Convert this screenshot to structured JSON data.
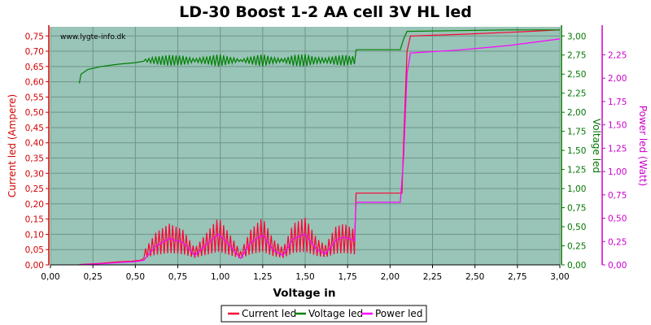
{
  "chart_data": {
    "type": "line",
    "title": "LD-30 Boost 1-2 AA cell 3V HL led",
    "watermark": "www.lygte-info.dk",
    "xlabel": "Voltage in",
    "xlim": [
      0,
      3.0
    ],
    "xticks": [
      "0,00",
      "0,25",
      "0,50",
      "0,75",
      "1,00",
      "1,25",
      "1,50",
      "1,75",
      "2,00",
      "2,25",
      "2,50",
      "2,75",
      "3,00"
    ],
    "axes": {
      "left": {
        "label": "Current led (Ampere)",
        "color": "#d40000",
        "lim": [
          0,
          0.78
        ],
        "ticks": [
          "0,00",
          "0,05",
          "0,10",
          "0,15",
          "0,20",
          "0,25",
          "0,30",
          "0,35",
          "0,40",
          "0,45",
          "0,50",
          "0,55",
          "0,60",
          "0,65",
          "0,70",
          "0,75"
        ]
      },
      "right1": {
        "label": "Voltage led",
        "color": "#007700",
        "lim": [
          0,
          3.12
        ],
        "ticks": [
          "0,00",
          "0,25",
          "0,50",
          "0,75",
          "1,00",
          "1,25",
          "1,50",
          "1,75",
          "2,00",
          "2,25",
          "2,50",
          "2,75",
          "3,00"
        ]
      },
      "right2": {
        "label": "Power led (Watt)",
        "color": "#cc00cc",
        "lim": [
          0,
          2.55
        ],
        "ticks": [
          "0,00",
          "0,25",
          "0,50",
          "0,75",
          "1,00",
          "1,25",
          "1,50",
          "1,75",
          "2,00",
          "2,25"
        ]
      }
    },
    "plot_background": "#99c4b8",
    "grid": true,
    "legend_position": "bottom-center",
    "series": [
      {
        "name": "Current led",
        "axis": "left",
        "color": "#ff0033",
        "oscillation": {
          "x_from": 0.55,
          "x_to": 1.79,
          "period": 0.02,
          "low": 0.015,
          "envelope_x": [
            0.55,
            0.62,
            0.7,
            0.78,
            0.85,
            0.92,
            0.99,
            1.05,
            1.12,
            1.18,
            1.25,
            1.31,
            1.37,
            1.43,
            1.5,
            1.57,
            1.62,
            1.68,
            1.73,
            1.79
          ],
          "envelope_y": [
            0.03,
            0.09,
            0.12,
            0.1,
            0.04,
            0.09,
            0.14,
            0.09,
            0.03,
            0.1,
            0.14,
            0.07,
            0.04,
            0.12,
            0.14,
            0.07,
            0.05,
            0.11,
            0.12,
            0.1
          ]
        },
        "x": [
          0.17,
          0.3,
          0.4,
          0.48,
          0.53,
          0.55,
          1.79,
          1.8,
          1.81,
          2.07,
          2.08,
          2.1,
          2.12,
          2.4,
          2.7,
          3.0
        ],
        "y": [
          0.001,
          0.005,
          0.01,
          0.012,
          0.015,
          0.02,
          0.1,
          0.235,
          0.235,
          0.235,
          0.4,
          0.7,
          0.75,
          0.755,
          0.762,
          0.77
        ]
      },
      {
        "name": "Voltage led",
        "axis": "right1",
        "color": "#008000",
        "oscillation": {
          "x_from": 0.55,
          "x_to": 1.79,
          "period": 0.02,
          "mid": 2.68,
          "envelope_x": [
            0.55,
            0.62,
            0.7,
            0.78,
            0.85,
            0.92,
            0.99,
            1.05,
            1.12,
            1.18,
            1.25,
            1.31,
            1.37,
            1.43,
            1.5,
            1.57,
            1.62,
            1.68,
            1.73,
            1.79
          ],
          "envelope_y": [
            0.01,
            0.05,
            0.07,
            0.06,
            0.02,
            0.05,
            0.08,
            0.05,
            0.01,
            0.05,
            0.08,
            0.04,
            0.02,
            0.07,
            0.08,
            0.04,
            0.03,
            0.06,
            0.07,
            0.05
          ]
        },
        "x": [
          0.17,
          0.18,
          0.22,
          0.3,
          0.4,
          0.5,
          0.55,
          1.79,
          1.8,
          2.06,
          2.08,
          2.1,
          2.4,
          2.7,
          3.0
        ],
        "y": [
          2.38,
          2.5,
          2.56,
          2.6,
          2.63,
          2.65,
          2.66,
          2.75,
          2.82,
          2.82,
          2.96,
          3.06,
          3.07,
          3.08,
          3.08
        ]
      },
      {
        "name": "Power led",
        "axis": "right2",
        "color": "#ff00ff",
        "oscillation": null,
        "x": [
          0.17,
          0.3,
          0.4,
          0.5,
          0.55,
          0.62,
          0.7,
          0.78,
          0.85,
          0.92,
          0.99,
          1.05,
          1.12,
          1.18,
          1.25,
          1.31,
          1.37,
          1.43,
          1.5,
          1.57,
          1.62,
          1.68,
          1.73,
          1.79,
          1.8,
          2.06,
          2.08,
          2.1,
          2.12,
          2.4,
          2.7,
          3.0
        ],
        "y": [
          0.002,
          0.012,
          0.025,
          0.035,
          0.05,
          0.2,
          0.28,
          0.24,
          0.1,
          0.22,
          0.33,
          0.22,
          0.07,
          0.24,
          0.32,
          0.16,
          0.1,
          0.28,
          0.33,
          0.16,
          0.12,
          0.26,
          0.3,
          0.26,
          0.67,
          0.67,
          1.15,
          2.05,
          2.27,
          2.3,
          2.35,
          2.42
        ]
      }
    ]
  }
}
